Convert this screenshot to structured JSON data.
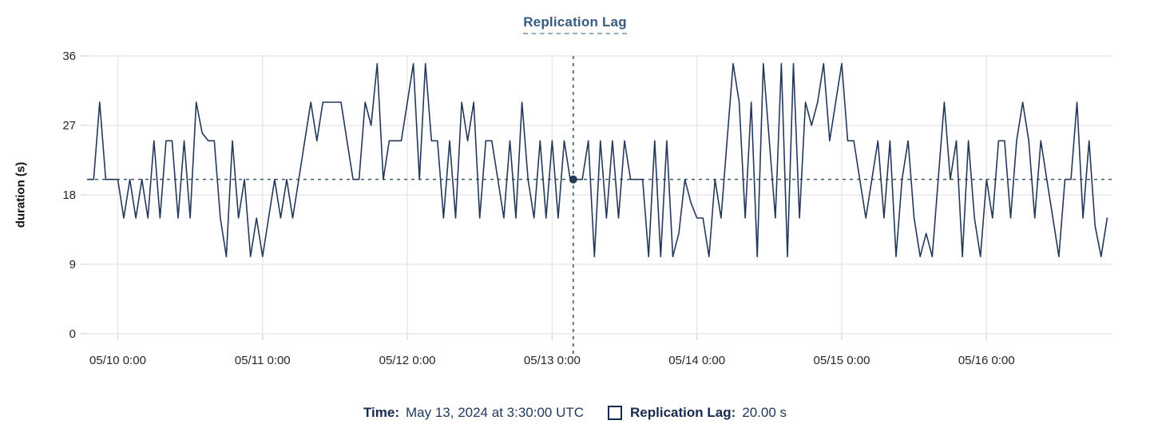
{
  "title": "Replication Lag",
  "colors": {
    "line": "#24395a",
    "crosshair": "#3a5a70",
    "grid": "#e9e9e9",
    "tick": "#dcdcdc",
    "tick_text": "#262626",
    "title_text": "#375a7f",
    "legend_text": "#152a4e",
    "dot": "#253a55"
  },
  "tooltip": {
    "time_label": "Time:",
    "time_value": "May 13, 2024 at 3:30:00 UTC",
    "series_label": "Replication Lag:",
    "series_value": "20.00 s",
    "swatch_icon": "square-outline-icon"
  },
  "chart_data": {
    "type": "line",
    "title": "Replication Lag",
    "xlabel": "",
    "ylabel": "duration (s)",
    "ylim": [
      0,
      36
    ],
    "yticks": [
      0,
      9,
      18,
      27,
      36
    ],
    "xtick_labels": [
      "05/10 0:00",
      "05/11 0:00",
      "05/12 0:00",
      "05/13 0:00",
      "05/14 0:00",
      "05/15 0:00",
      "05/16 0:00"
    ],
    "xtick_hours": [
      5,
      29,
      53,
      77,
      101,
      125,
      149
    ],
    "x_domain_note": "hours since 2024-05-09 19:00 UTC, one point per hour",
    "grid": true,
    "legend_position": "bottom",
    "series": [
      {
        "name": "Replication Lag",
        "unit": "s",
        "start_hour_offset": 0,
        "interval_hours": 1,
        "values": [
          20,
          20,
          30,
          20,
          20,
          20,
          15,
          20,
          15,
          20,
          15,
          25,
          15,
          25,
          25,
          15,
          25,
          15,
          30,
          26,
          25,
          25,
          15,
          10,
          25,
          15,
          20,
          10,
          15,
          10,
          15,
          20,
          15,
          20,
          15,
          20,
          25,
          30,
          25,
          30,
          30,
          30,
          30,
          25,
          20,
          20,
          30,
          27,
          35,
          20,
          25,
          25,
          25,
          30,
          35,
          20,
          35,
          25,
          25,
          15,
          25,
          15,
          30,
          25,
          30,
          15,
          25,
          25,
          20,
          15,
          25,
          15,
          30,
          20,
          15,
          25,
          15,
          25,
          15,
          25,
          20,
          20,
          20,
          25,
          10,
          25,
          15,
          25,
          15,
          25,
          20,
          20,
          20,
          10,
          25,
          10,
          25,
          10,
          13,
          20,
          17,
          15,
          15,
          10,
          20,
          15,
          25,
          35,
          30,
          15,
          30,
          10,
          35,
          25,
          15,
          35,
          10,
          35,
          15,
          30,
          27,
          30,
          35,
          25,
          30,
          35,
          25,
          25,
          20,
          15,
          20,
          25,
          15,
          25,
          10,
          20,
          25,
          15,
          10,
          13,
          10,
          20,
          30,
          20,
          25,
          10,
          25,
          15,
          10,
          20,
          15,
          25,
          25,
          15,
          25,
          30,
          25,
          15,
          25,
          20,
          15,
          10,
          20,
          20,
          30,
          15,
          25,
          14,
          10,
          15
        ]
      }
    ],
    "crosshair": {
      "hour": 80.5,
      "value": 20,
      "time_label": "May 13, 2024 at 3:30:00 UTC",
      "value_label": "20.00 s"
    }
  }
}
